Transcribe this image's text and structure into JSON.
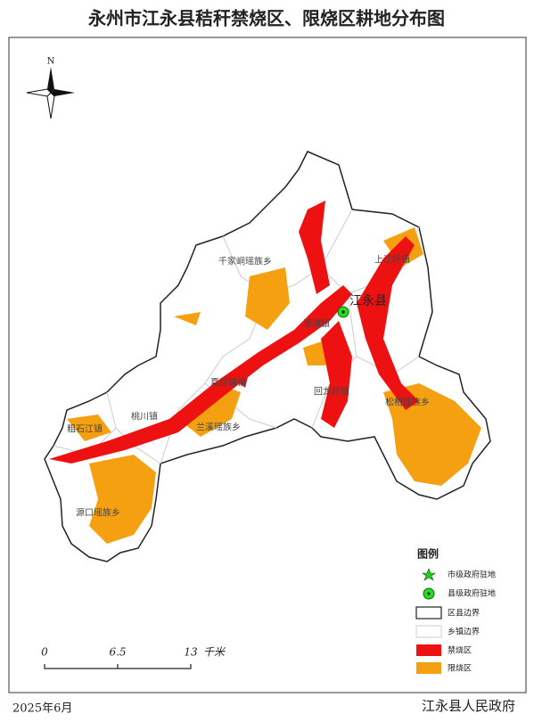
{
  "title": "永州市江永县秸秆禁烧区、限烧区耕地分布图",
  "north": "N",
  "county_seat": "江永县",
  "places": [
    "千家峒瑶族乡",
    "上江圩镇",
    "潇浦镇",
    "回龙圩镇",
    "松柏瑶族乡",
    "夏层铺镇",
    "桃川镇",
    "粗石江镇",
    "兰溪瑶族乡",
    "源口瑶族乡"
  ],
  "legend": {
    "title": "图例",
    "items": [
      "市级政府驻地",
      "县级政府驻地",
      "区县边界",
      "乡镇边界",
      "禁烧区",
      "限烧区"
    ]
  },
  "scale_bar": {
    "labels": [
      "0",
      "6.5",
      "13"
    ],
    "unit": "千米"
  },
  "footer": {
    "date": "2025年6月",
    "issuer": "江永县人民政府"
  }
}
